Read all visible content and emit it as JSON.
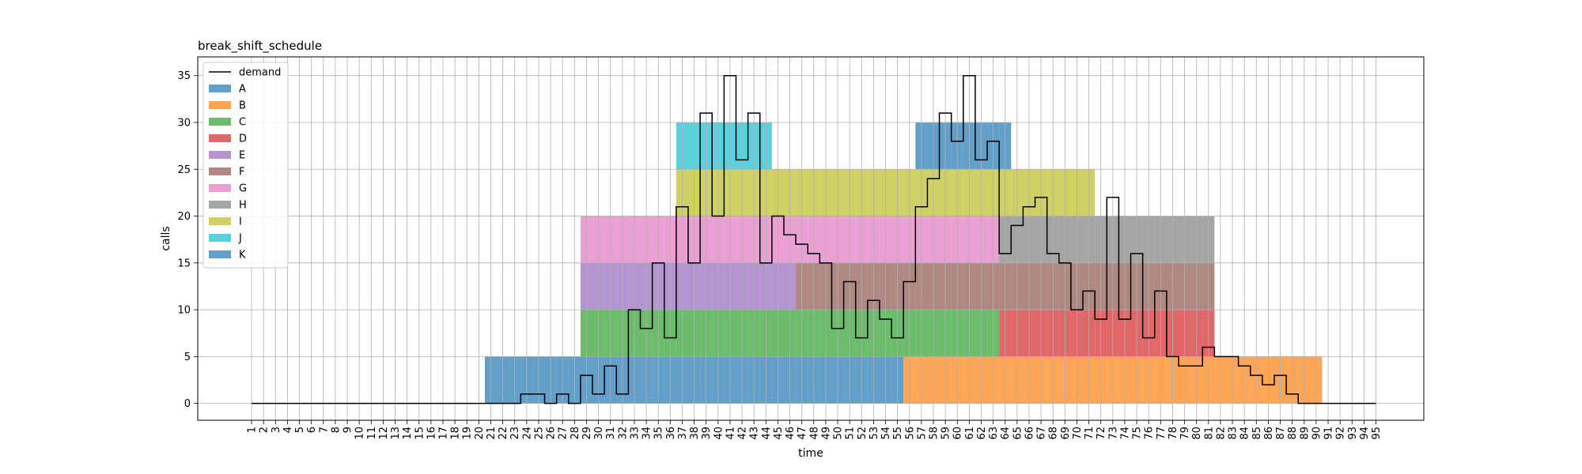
{
  "chart_data": {
    "type": "bar",
    "title": "break_shift_schedule",
    "xlabel": "time",
    "ylabel": "calls",
    "x_ticks": [
      1,
      2,
      3,
      4,
      5,
      6,
      7,
      8,
      9,
      10,
      11,
      12,
      13,
      14,
      15,
      16,
      17,
      18,
      19,
      20,
      21,
      22,
      23,
      24,
      25,
      26,
      27,
      28,
      29,
      30,
      31,
      32,
      33,
      34,
      35,
      36,
      37,
      38,
      39,
      40,
      41,
      42,
      43,
      44,
      45,
      46,
      47,
      48,
      49,
      50,
      51,
      52,
      53,
      54,
      55,
      56,
      57,
      58,
      59,
      60,
      61,
      62,
      63,
      64,
      65,
      66,
      67,
      68,
      69,
      70,
      71,
      72,
      73,
      74,
      75,
      76,
      77,
      78,
      79,
      80,
      81,
      82,
      83,
      84,
      85,
      86,
      87,
      88,
      89,
      90,
      91,
      92,
      93,
      94,
      95
    ],
    "xlim": [
      -3.5,
      99
    ],
    "ylim": [
      -1.8,
      37
    ],
    "y_ticks": [
      0,
      5,
      10,
      15,
      20,
      25,
      30,
      35
    ],
    "grid": true,
    "legend_position": "top-left",
    "series": [
      {
        "name": "A",
        "color": "#1f77b4",
        "segments": [
          {
            "start": 21,
            "end": 56,
            "bottom": 0,
            "height": 5
          }
        ]
      },
      {
        "name": "B",
        "color": "#ff7f0e",
        "segments": [
          {
            "start": 56,
            "end": 91,
            "bottom": 0,
            "height": 5
          }
        ]
      },
      {
        "name": "C",
        "color": "#2ca02c",
        "segments": [
          {
            "start": 29,
            "end": 64,
            "bottom": 5,
            "height": 5
          }
        ]
      },
      {
        "name": "D",
        "color": "#d62728",
        "segments": [
          {
            "start": 64,
            "end": 82,
            "bottom": 5,
            "height": 5
          }
        ]
      },
      {
        "name": "E",
        "color": "#9467bd",
        "segments": [
          {
            "start": 29,
            "end": 47,
            "bottom": 10,
            "height": 5
          }
        ]
      },
      {
        "name": "F",
        "color": "#8c564b",
        "segments": [
          {
            "start": 47,
            "end": 82,
            "bottom": 10,
            "height": 5
          }
        ]
      },
      {
        "name": "G",
        "color": "#e377c2",
        "segments": [
          {
            "start": 29,
            "end": 64,
            "bottom": 15,
            "height": 5
          }
        ]
      },
      {
        "name": "H",
        "color": "#7f7f7f",
        "segments": [
          {
            "start": 64,
            "end": 82,
            "bottom": 15,
            "height": 5
          }
        ]
      },
      {
        "name": "I",
        "color": "#bcbd22",
        "segments": [
          {
            "start": 37,
            "end": 72,
            "bottom": 20,
            "height": 5
          }
        ]
      },
      {
        "name": "J",
        "color": "#17becf",
        "segments": [
          {
            "start": 37,
            "end": 45,
            "bottom": 25,
            "height": 5
          }
        ]
      },
      {
        "name": "K",
        "color": "#1f77b4",
        "segments": [
          {
            "start": 57,
            "end": 65,
            "bottom": 25,
            "height": 5
          }
        ]
      }
    ],
    "demand": {
      "name": "demand",
      "color": "#000000",
      "x": [
        1,
        2,
        3,
        4,
        5,
        6,
        7,
        8,
        9,
        10,
        11,
        12,
        13,
        14,
        15,
        16,
        17,
        18,
        19,
        20,
        21,
        22,
        23,
        24,
        25,
        26,
        27,
        28,
        29,
        30,
        31,
        32,
        33,
        34,
        35,
        36,
        37,
        38,
        39,
        40,
        41,
        42,
        43,
        44,
        45,
        46,
        47,
        48,
        49,
        50,
        51,
        52,
        53,
        54,
        55,
        56,
        57,
        58,
        59,
        60,
        61,
        62,
        63,
        64,
        65,
        66,
        67,
        68,
        69,
        70,
        71,
        72,
        73,
        74,
        75,
        76,
        77,
        78,
        79,
        80,
        81,
        82,
        83,
        84,
        85,
        86,
        87,
        88,
        89,
        90,
        91,
        92,
        93,
        94,
        95
      ],
      "values": [
        0,
        0,
        0,
        0,
        0,
        0,
        0,
        0,
        0,
        0,
        0,
        0,
        0,
        0,
        0,
        0,
        0,
        0,
        0,
        0,
        0,
        0,
        0,
        1,
        1,
        0,
        1,
        0,
        3,
        1,
        4,
        1,
        10,
        8,
        15,
        7,
        21,
        15,
        31,
        20,
        35,
        26,
        31,
        15,
        20,
        18,
        17,
        16,
        15,
        8,
        13,
        7,
        11,
        9,
        7,
        13,
        21,
        24,
        31,
        28,
        35,
        26,
        28,
        16,
        19,
        21,
        22,
        16,
        15,
        10,
        12,
        9,
        22,
        9,
        16,
        7,
        12,
        5,
        4,
        4,
        6,
        5,
        5,
        4,
        3,
        2,
        3,
        1,
        0,
        0,
        0,
        0,
        0,
        0,
        0
      ]
    }
  }
}
